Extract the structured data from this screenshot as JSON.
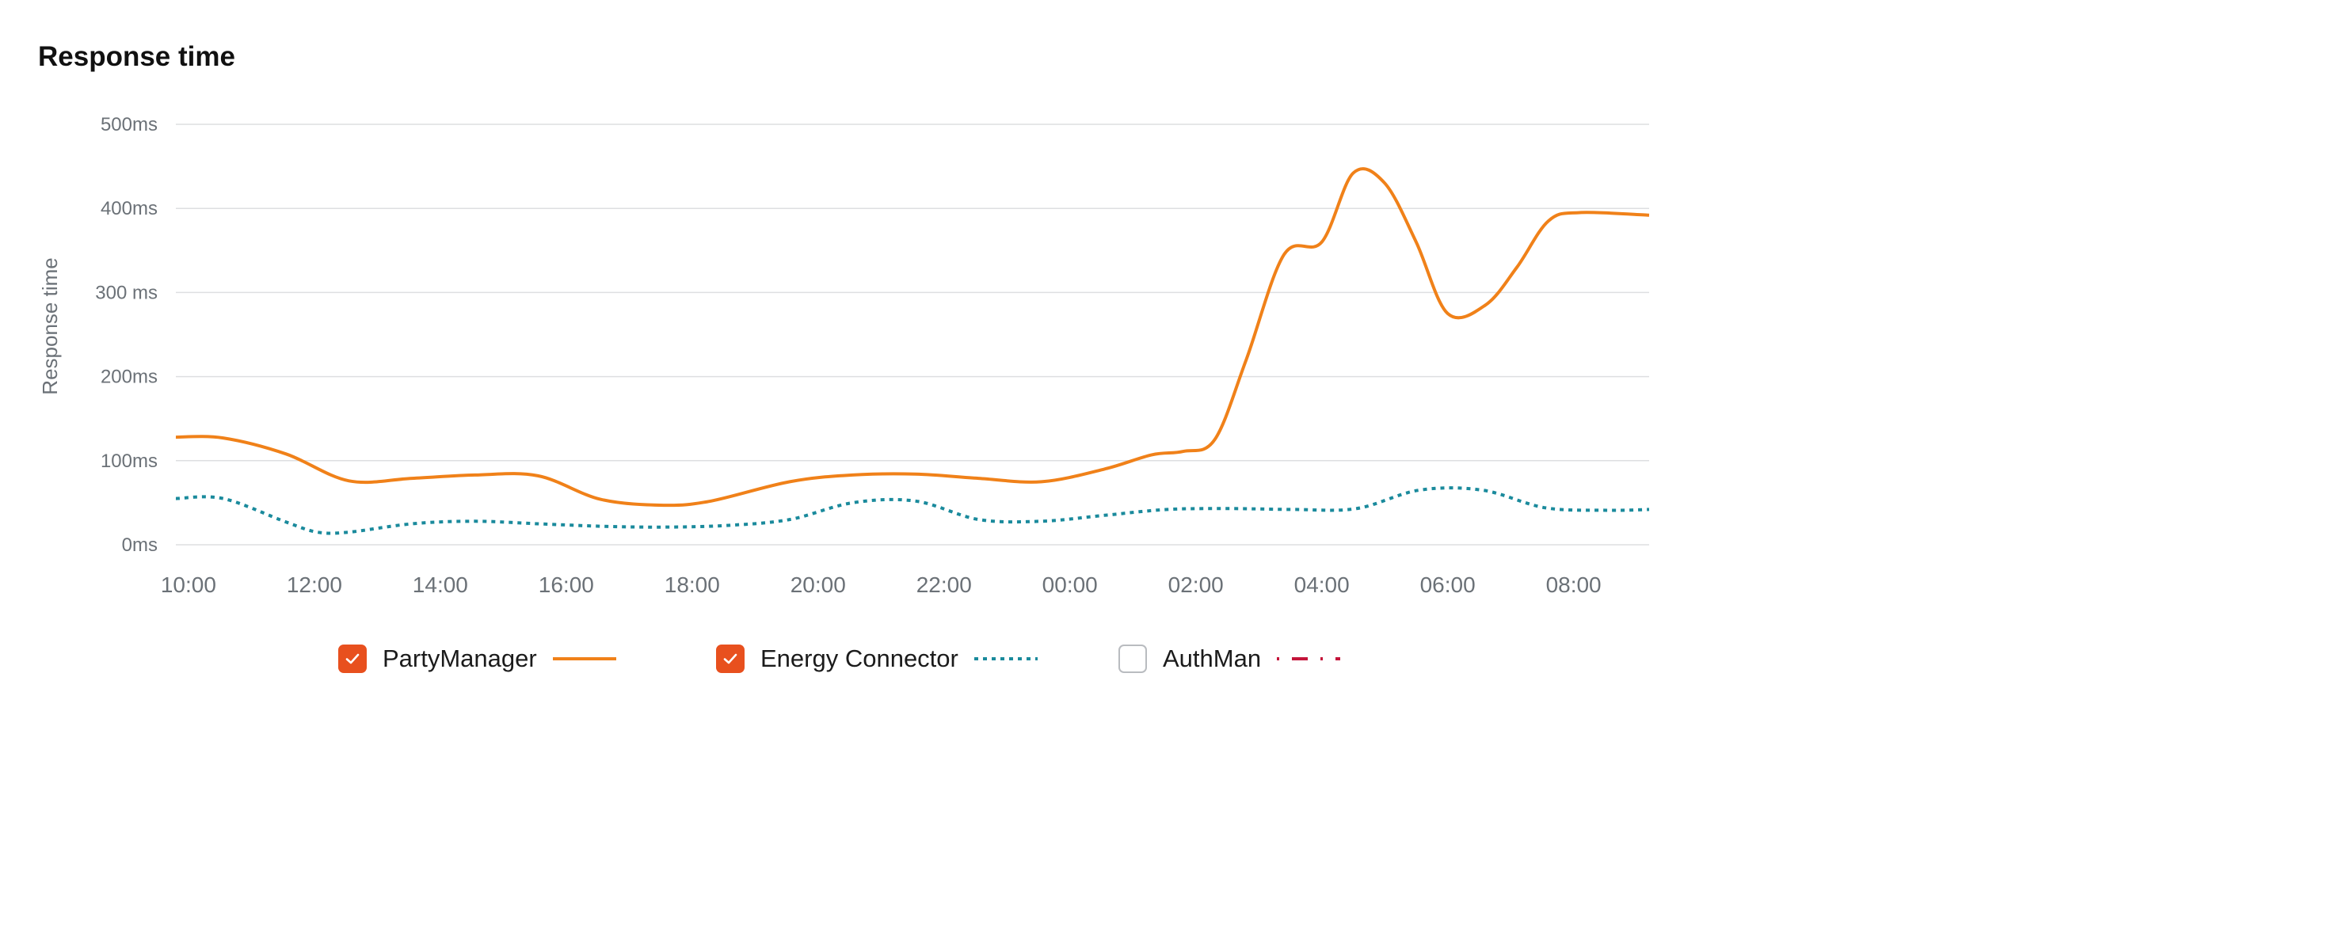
{
  "title": "Response time",
  "chart_data": {
    "type": "line",
    "title": "Response time",
    "ylabel": "Response time",
    "xlabel": "",
    "ylim": [
      0,
      500
    ],
    "yticks": [
      {
        "value": 0,
        "label": "0ms"
      },
      {
        "value": 100,
        "label": "100ms"
      },
      {
        "value": 200,
        "label": "200ms"
      },
      {
        "value": 300,
        "label": "300 ms"
      },
      {
        "value": 400,
        "label": "400ms"
      },
      {
        "value": 500,
        "label": "500ms"
      }
    ],
    "xticks": [
      "10:00",
      "12:00",
      "14:00",
      "16:00",
      "18:00",
      "20:00",
      "22:00",
      "00:00",
      "02:00",
      "04:00",
      "06:00",
      "08:00"
    ],
    "xlim": [
      0,
      23.4
    ],
    "grid": true,
    "legend_position": "bottom",
    "series": [
      {
        "name": "PartyManager",
        "color": "#f08119",
        "dash": "solid",
        "checked": true,
        "x": [
          0,
          0.75,
          1.75,
          2.75,
          3.75,
          4.75,
          5.75,
          6.75,
          7.75,
          8.5,
          9.75,
          10.75,
          11.75,
          12.75,
          13.75,
          14.75,
          15.5,
          16.0,
          16.5,
          17.0,
          17.6,
          18.2,
          18.7,
          19.2,
          19.7,
          20.2,
          20.8,
          21.3,
          21.8,
          22.3,
          23.4
        ],
        "values": [
          128,
          127,
          108,
          76,
          79,
          83,
          82,
          54,
          47,
          52,
          75,
          83,
          84,
          79,
          75,
          90,
          107,
          111,
          125,
          220,
          345,
          360,
          442,
          430,
          360,
          275,
          285,
          330,
          385,
          395,
          392
        ]
      },
      {
        "name": "Energy Connector",
        "color": "#1a8a9c",
        "dash": "dotted",
        "checked": true,
        "x": [
          0,
          0.75,
          1.75,
          2.25,
          2.75,
          3.75,
          4.75,
          5.75,
          6.75,
          7.75,
          8.75,
          9.75,
          10.75,
          11.75,
          12.75,
          13.75,
          14.75,
          15.75,
          16.75,
          17.75,
          18.75,
          19.75,
          20.75,
          21.75,
          22.75,
          23.4
        ],
        "values": [
          55,
          55,
          27,
          15,
          15,
          25,
          28,
          25,
          22,
          21,
          23,
          30,
          50,
          52,
          30,
          28,
          35,
          42,
          43,
          42,
          43,
          65,
          65,
          44,
          41,
          42
        ]
      },
      {
        "name": "AuthMan",
        "color": "#c4143a",
        "dash": "dash-dot",
        "checked": false,
        "x": [],
        "values": []
      }
    ]
  }
}
